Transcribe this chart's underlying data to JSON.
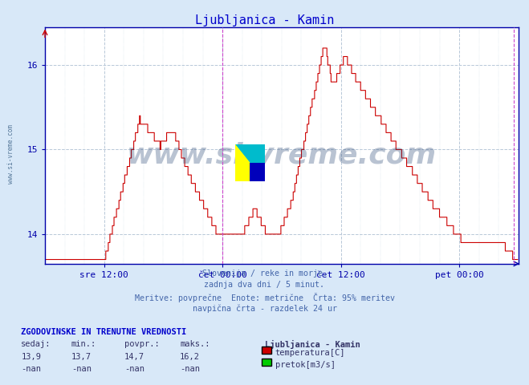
{
  "title": "Ljubljanica - Kamin",
  "title_color": "#0000cc",
  "bg_color": "#d8e8f8",
  "plot_bg_color": "#ffffff",
  "line_color": "#cc0000",
  "grid_color": "#b8c8d8",
  "axis_color": "#0000aa",
  "ylim": [
    13.65,
    16.45
  ],
  "yticks": [
    14,
    15,
    16
  ],
  "xlim": [
    0,
    576
  ],
  "xtick_positions": [
    72,
    216,
    360,
    504
  ],
  "xtick_labels": [
    "sre 12:00",
    "čet 00:00",
    "čet 12:00",
    "pet 00:00"
  ],
  "vline_positions": [
    216,
    570
  ],
  "vline_color": "#cc44cc",
  "watermark_text": "www.si-vreme.com",
  "watermark_color": "#1a3a6a",
  "watermark_alpha": 0.3,
  "subtitle_lines": [
    "Slovenija / reke in morje.",
    "zadnja dva dni / 5 minut.",
    "Meritve: povprečne  Enote: metrične  Črta: 95% meritev",
    "navpična črta - razdelek 24 ur"
  ],
  "subtitle_color": "#4466aa",
  "table_header": "ZGODOVINSKE IN TRENUTNE VREDNOSTI",
  "table_header_color": "#0000cc",
  "col_headers": [
    "sedaj:",
    "min.:",
    "povpr.:",
    "maks.:"
  ],
  "row1_values": [
    "13,9",
    "13,7",
    "14,7",
    "16,2"
  ],
  "row2_values": [
    "-nan",
    "-nan",
    "-nan",
    "-nan"
  ],
  "legend_title": "Ljubljanica - Kamin",
  "legend_items": [
    {
      "label": "temperatura[C]",
      "color": "#cc0000"
    },
    {
      "label": "pretok[m3/s]",
      "color": "#00cc00"
    }
  ]
}
